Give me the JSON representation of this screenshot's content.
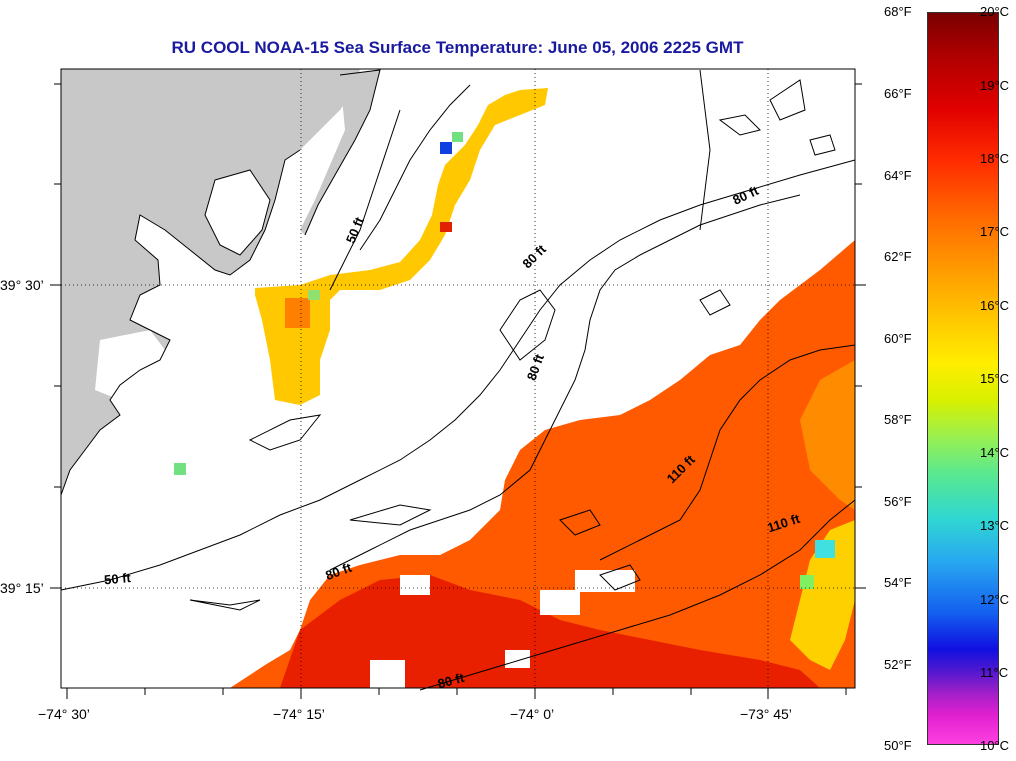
{
  "title": "RU COOL  NOAA-15  Sea Surface Temperature:  June 05, 2006 2225 GMT",
  "axes": {
    "x_ticks": [
      "−74° 30’",
      "−74° 15’",
      "−74° 0’",
      "−73° 45’"
    ],
    "y_ticks": [
      "39° 30’",
      "39° 15’"
    ]
  },
  "contour_labels": [
    "50 ft",
    "80 ft",
    "80 ft",
    "80 ft",
    "80 ft",
    "110 ft",
    "110 ft",
    "80 ft",
    "50 ft"
  ],
  "colorbar": {
    "fahrenheit": [
      "68°F",
      "66°F",
      "64°F",
      "62°F",
      "60°F",
      "58°F",
      "56°F",
      "54°F",
      "52°F",
      "50°F"
    ],
    "celsius": [
      "20°C",
      "19°C",
      "18°C",
      "17°C",
      "16°C",
      "15°C",
      "14°C",
      "13°C",
      "12°C",
      "11°C",
      "10°C"
    ]
  },
  "colors": {
    "land": "#c8c8c8",
    "title": "#1a1aa0",
    "warm": "#ff5a00",
    "hot": "#e82000",
    "cool": "#ffd000"
  }
}
